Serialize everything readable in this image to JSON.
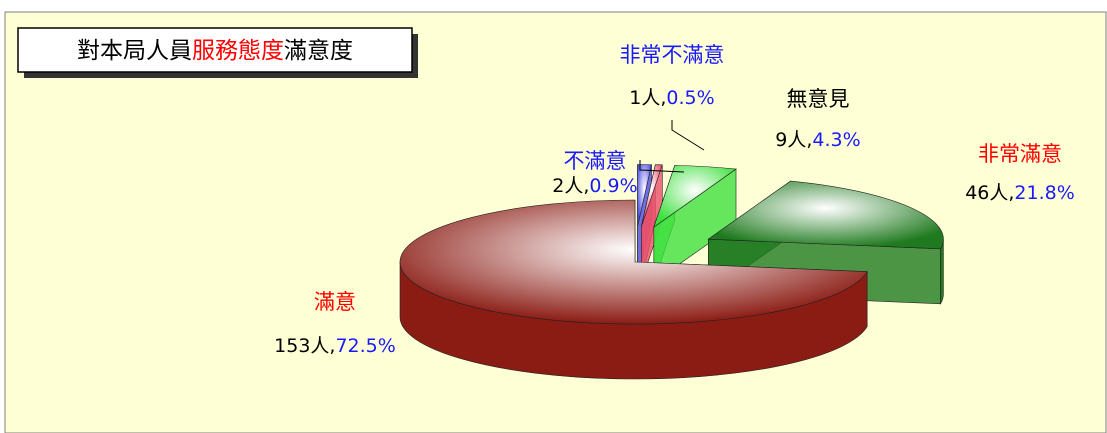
{
  "chart_data": {
    "type": "pie3d",
    "title_parts": [
      "對本局人員",
      "服務態度",
      "滿意度"
    ],
    "title_colors": [
      "#000000",
      "#ff0000",
      "#000000"
    ],
    "categories": [
      "不滿意",
      "非常不滿意",
      "無意見",
      "非常滿意",
      "滿意"
    ],
    "values": [
      2,
      1,
      9,
      46,
      153
    ],
    "value_labels": [
      "2人,",
      "1人,",
      "9人,",
      "46人,",
      "153人,"
    ],
    "percents": [
      0.9,
      0.5,
      4.3,
      21.8,
      72.5
    ],
    "percent_labels": [
      "0.9%",
      "0.5%",
      "4.3%",
      "21.8%",
      "72.5%"
    ],
    "colors": [
      "#4a4ae6",
      "#e8506a",
      "#3ee03e",
      "#1f7a1f",
      "#8b1c14"
    ],
    "label_colors": [
      "#1a1aff",
      "#1a1aff",
      "#000000",
      "#ff0000",
      "#ff0000"
    ],
    "percent_color": "#1a1aff"
  }
}
